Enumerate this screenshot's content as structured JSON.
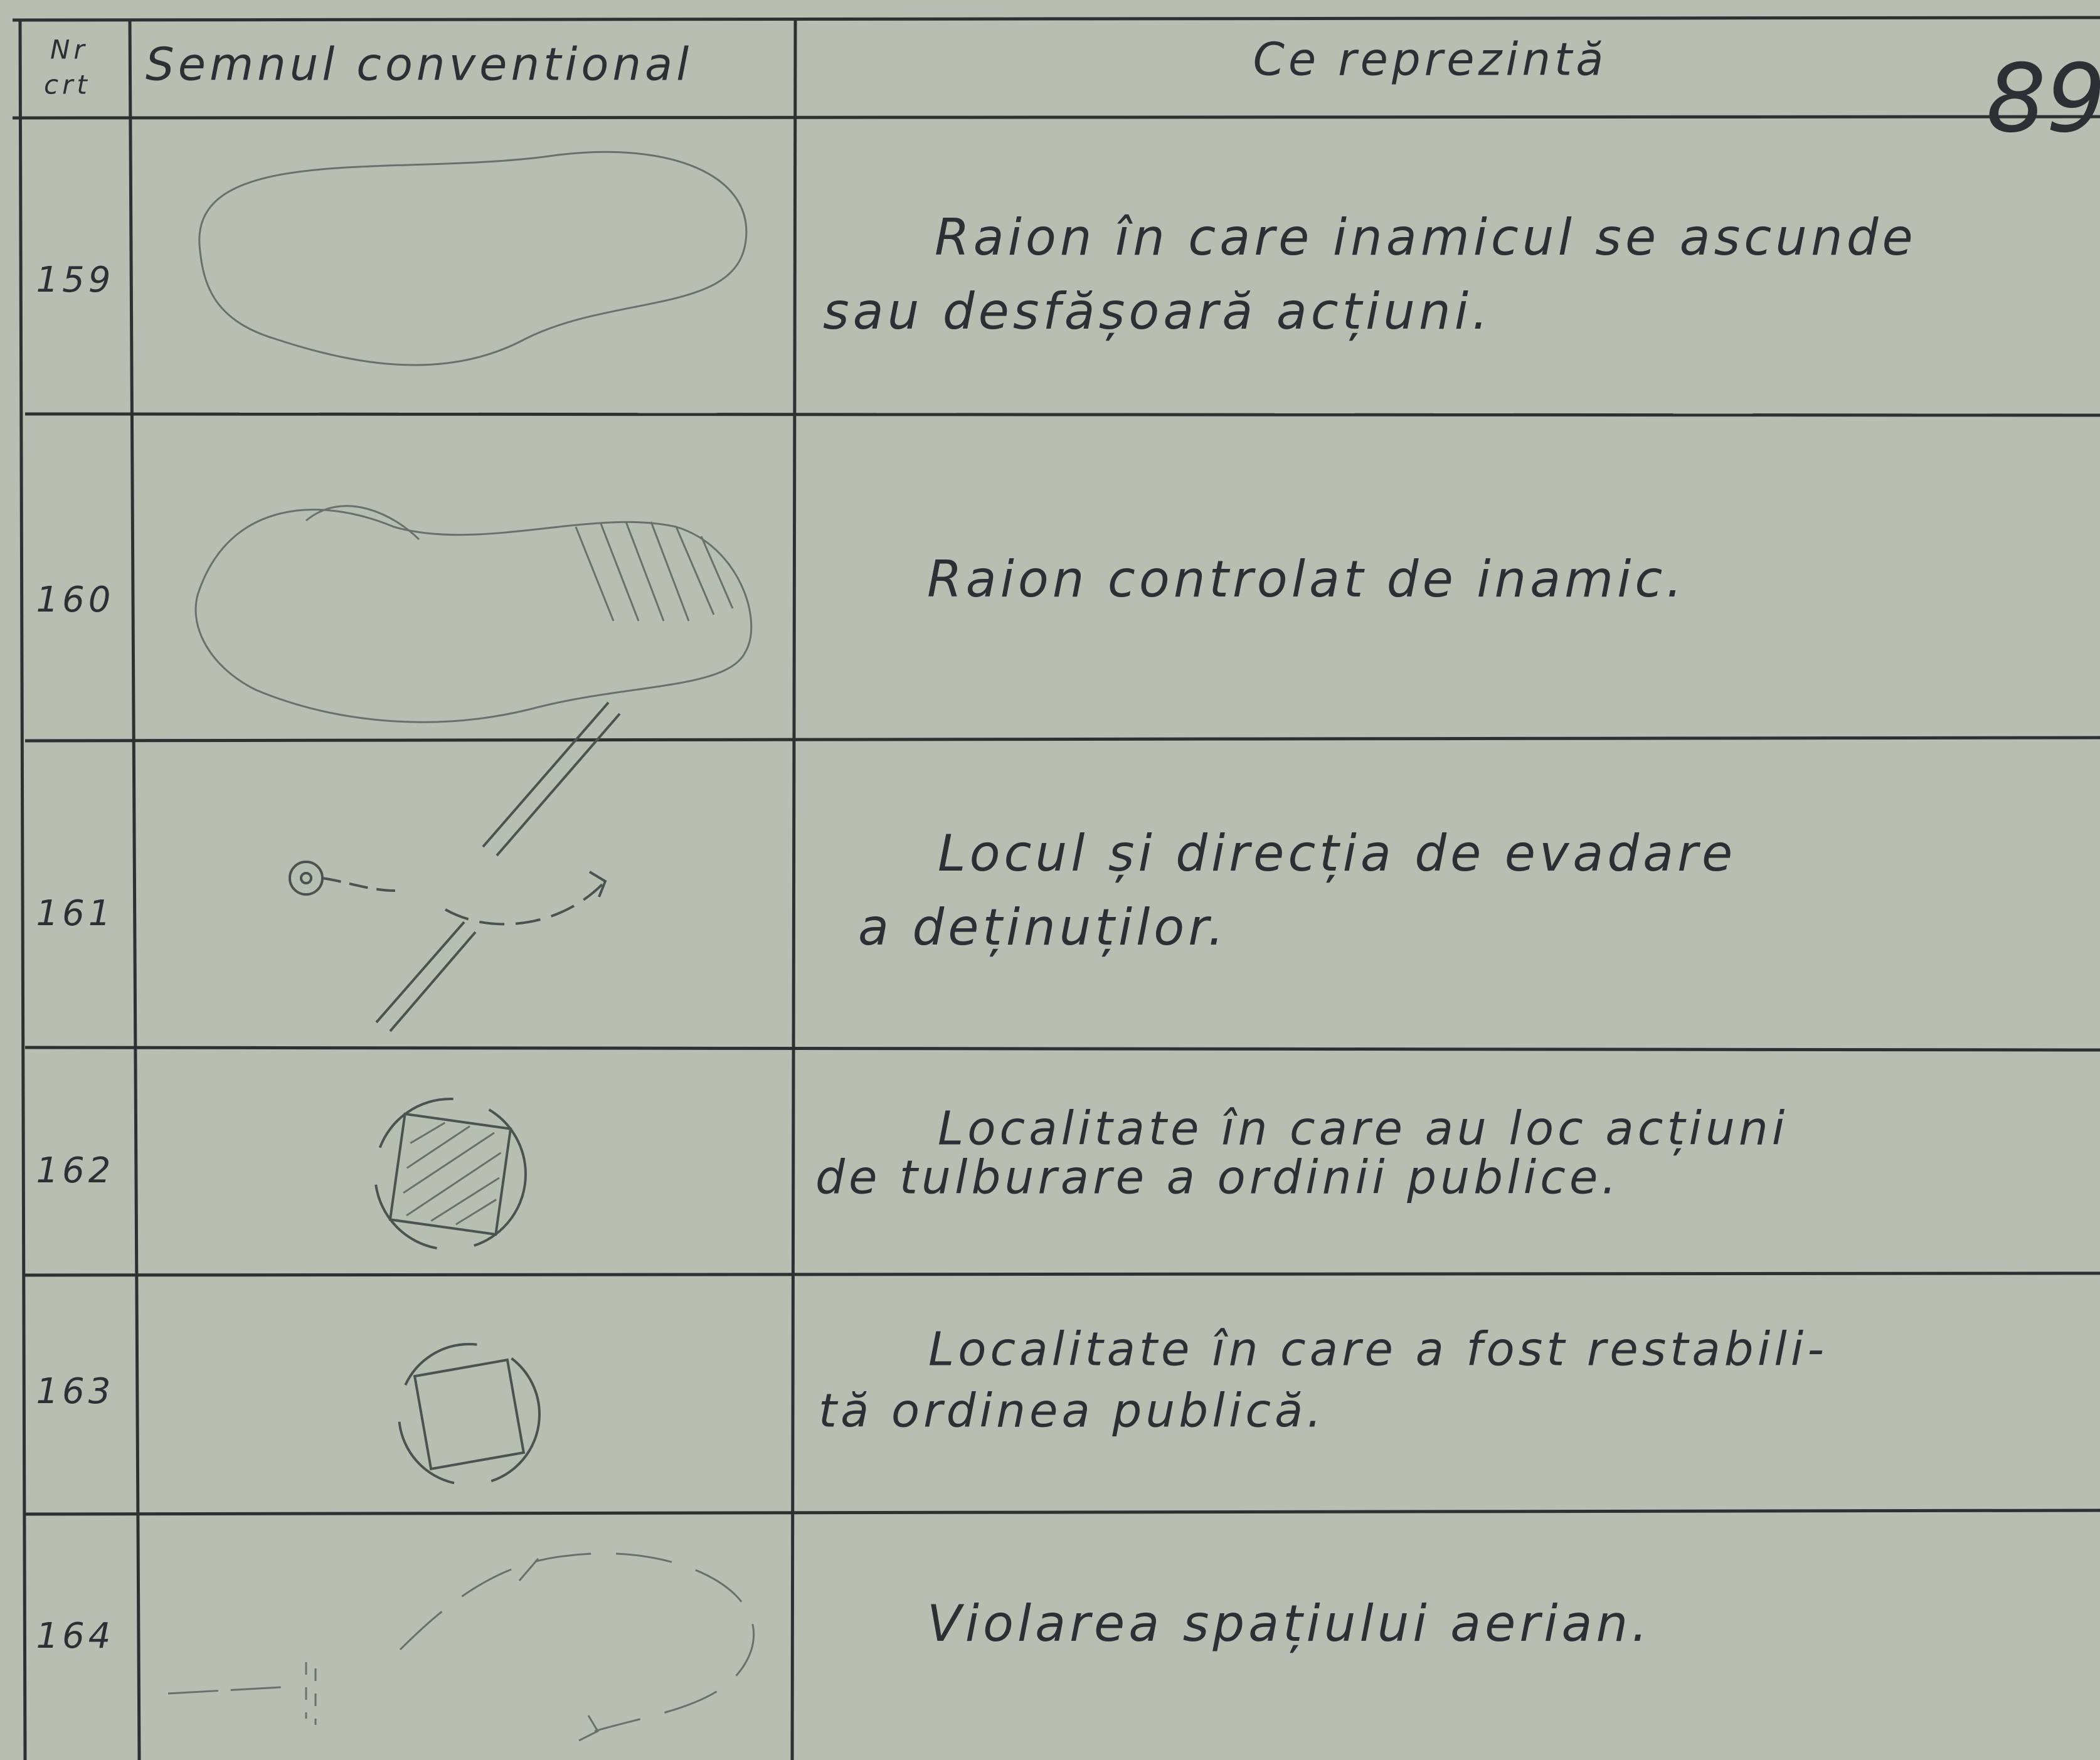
{
  "page_number": "89",
  "header": {
    "number": [
      "Nr",
      "crt"
    ],
    "symbol": "Semnul conventional",
    "meaning": "Ce reprezintă"
  },
  "table": {
    "rows": [
      {
        "number": "159",
        "meaning": [
          "Raion în care inamicul se ascunde",
          "sau desfășoară acțiuni."
        ]
      },
      {
        "number": "160",
        "meaning": [
          "Raion controlat de inamic."
        ]
      },
      {
        "number": "161",
        "meaning": [
          "Locul și direcția de evadare",
          "a deținuților."
        ]
      },
      {
        "number": "162",
        "meaning": [
          "Localitate în care au  loc acțiuni",
          "de tulburare a ordinii publice."
        ]
      },
      {
        "number": "163",
        "meaning": [
          "Localitate în care a fost restabili-",
          "tă ordinea publică."
        ]
      },
      {
        "number": "164",
        "meaning": [
          "Violarea spațiului aerian."
        ]
      }
    ]
  }
}
